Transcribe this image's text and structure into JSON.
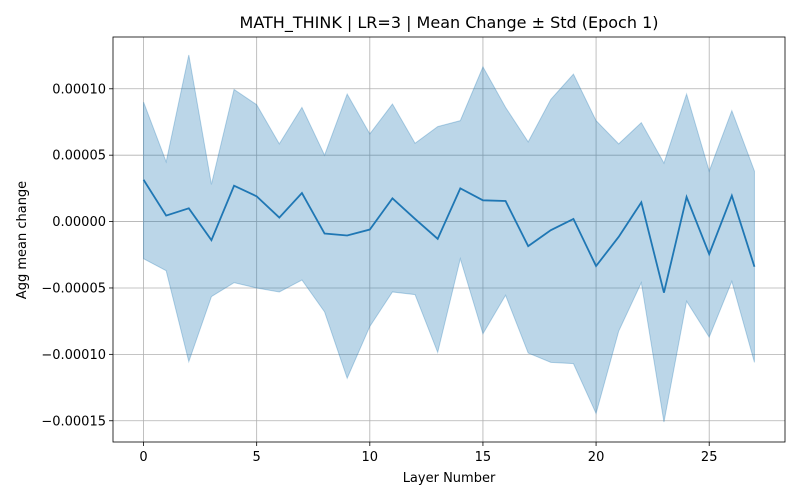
{
  "chart_data": {
    "type": "line",
    "title": "MATH_THINK | LR=3 | Mean Change ± Std (Epoch 1)",
    "xlabel": "Layer Number",
    "ylabel": "Agg mean change",
    "x": [
      0,
      1,
      2,
      3,
      4,
      5,
      6,
      7,
      8,
      9,
      10,
      11,
      12,
      13,
      14,
      15,
      16,
      17,
      18,
      19,
      20,
      21,
      22,
      23,
      24,
      25,
      26,
      27
    ],
    "series": [
      {
        "mean": [
          3.15e-05,
          4.5e-06,
          1e-05,
          -1.4e-05,
          2.7e-05,
          1.9e-05,
          3e-06,
          2.15e-05,
          -9e-06,
          -1.05e-05,
          -6e-06,
          1.75e-05,
          2e-06,
          -1.3e-05,
          2.5e-05,
          1.6e-05,
          1.55e-05,
          -1.85e-05,
          -6.5e-06,
          2e-06,
          -3.35e-05,
          -1.15e-05,
          1.45e-05,
          -5.35e-05,
          1.85e-05,
          -2.45e-05,
          1.95e-05,
          -3.4e-05
        ],
        "upper": [
          9e-05,
          4.5e-05,
          0.0001255,
          2.8e-05,
          9.95e-05,
          8.8e-05,
          5.85e-05,
          8.6e-05,
          5e-05,
          9.6e-05,
          6.6e-05,
          8.85e-05,
          5.9e-05,
          7.15e-05,
          7.6e-05,
          0.0001165,
          8.6e-05,
          6e-05,
          9.2e-05,
          0.000111,
          7.6e-05,
          5.85e-05,
          7.45e-05,
          4.4e-05,
          9.6e-05,
          3.8e-05,
          8.35e-05,
          3.8e-05
        ],
        "lower": [
          -2.8e-05,
          -3.7e-05,
          -0.0001055,
          -5.65e-05,
          -4.6e-05,
          -5e-05,
          -5.3e-05,
          -4.4e-05,
          -6.8e-05,
          -0.000118,
          -7.9e-05,
          -5.3e-05,
          -5.5e-05,
          -9.85e-05,
          -2.8e-05,
          -8.45e-05,
          -5.55e-05,
          -9.9e-05,
          -0.000106,
          -0.000107,
          -0.0001445,
          -8.25e-05,
          -4.6e-05,
          -0.000151,
          -6e-05,
          -8.7e-05,
          -4.5e-05,
          -0.000106
        ]
      }
    ],
    "xlim": [
      -1.35,
      28.35
    ],
    "ylim": [
      -0.000166,
      0.000139
    ],
    "xticks": [
      0,
      5,
      10,
      15,
      20,
      25
    ],
    "xtick_labels": [
      "0",
      "5",
      "10",
      "15",
      "20",
      "25"
    ],
    "yticks": [
      -0.00015,
      -0.0001,
      -5e-05,
      0,
      5e-05,
      0.0001
    ],
    "ytick_labels": [
      "−0.00015",
      "−0.00010",
      "−0.00005",
      "0.00000",
      "0.00005",
      "0.00010"
    ],
    "grid": true,
    "colors": {
      "line": "#1f77b4",
      "band": "#1f77b4",
      "grid": "#b0b0b0",
      "axes": "#000000"
    }
  }
}
